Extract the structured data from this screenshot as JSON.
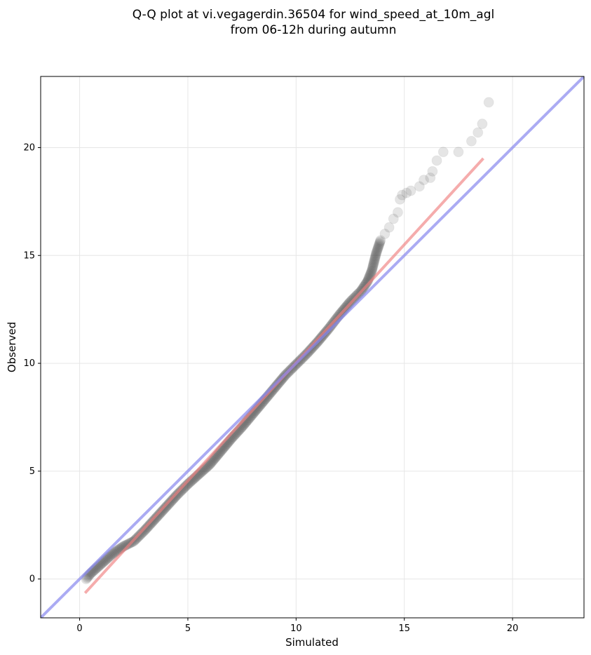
{
  "chart_data": {
    "type": "scatter",
    "title_line1": "Q-Q plot at vi.vegagerdin.36504 for wind_speed_at_10m_agl",
    "title_line2": "from 06-12h during autumn",
    "xlabel": "Simulated",
    "ylabel": "Observed",
    "xlim": [
      -1.8,
      23.3
    ],
    "ylim": [
      -1.8,
      23.3
    ],
    "xticks": [
      0,
      5,
      10,
      15,
      20
    ],
    "yticks": [
      0,
      5,
      10,
      15,
      20
    ],
    "grid": true,
    "colors": {
      "points": "#333333",
      "fit_line": "#f08080",
      "identity_line": "#8888ee",
      "grid": "#e6e6e6"
    },
    "identity_line": [
      [
        -1.8,
        -1.8
      ],
      [
        23.3,
        23.3
      ]
    ],
    "fit_line": [
      [
        0.25,
        -0.65
      ],
      [
        18.65,
        19.5
      ]
    ],
    "quantile_curve": [
      [
        0.3,
        0.0
      ],
      [
        0.5,
        0.25
      ],
      [
        1.0,
        0.7
      ],
      [
        1.5,
        1.15
      ],
      [
        2.0,
        1.5
      ],
      [
        2.5,
        1.75
      ],
      [
        3.0,
        2.25
      ],
      [
        3.5,
        2.8
      ],
      [
        4.0,
        3.35
      ],
      [
        4.5,
        3.9
      ],
      [
        5.0,
        4.4
      ],
      [
        5.5,
        4.85
      ],
      [
        6.0,
        5.3
      ],
      [
        6.5,
        5.9
      ],
      [
        7.0,
        6.5
      ],
      [
        7.5,
        7.05
      ],
      [
        8.0,
        7.65
      ],
      [
        8.5,
        8.25
      ],
      [
        9.0,
        8.85
      ],
      [
        9.5,
        9.45
      ],
      [
        10.0,
        9.95
      ],
      [
        10.5,
        10.45
      ],
      [
        11.0,
        11.0
      ],
      [
        11.5,
        11.6
      ],
      [
        12.0,
        12.25
      ],
      [
        12.5,
        12.85
      ],
      [
        13.0,
        13.35
      ],
      [
        13.3,
        13.8
      ],
      [
        13.5,
        14.3
      ],
      [
        13.7,
        15.1
      ],
      [
        13.9,
        15.7
      ]
    ],
    "tail_points": [
      [
        14.1,
        16.0
      ],
      [
        14.3,
        16.3
      ],
      [
        14.5,
        16.7
      ],
      [
        14.7,
        17.0
      ],
      [
        14.8,
        17.6
      ],
      [
        14.9,
        17.8
      ],
      [
        15.1,
        17.9
      ],
      [
        15.3,
        18.0
      ],
      [
        15.7,
        18.2
      ],
      [
        15.9,
        18.5
      ],
      [
        16.2,
        18.6
      ],
      [
        16.3,
        18.9
      ],
      [
        16.5,
        19.4
      ],
      [
        16.8,
        19.8
      ],
      [
        17.5,
        19.8
      ],
      [
        18.1,
        20.3
      ],
      [
        18.4,
        20.7
      ],
      [
        18.6,
        21.1
      ],
      [
        18.9,
        22.1
      ]
    ]
  }
}
